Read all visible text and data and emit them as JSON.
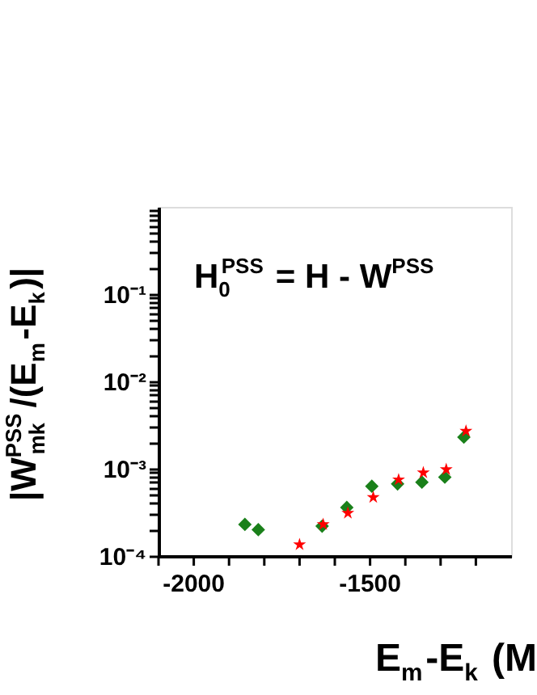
{
  "chart_data": {
    "type": "scatter",
    "xlabel": "E$_{m}$-E$_{k}$ (M",
    "ylabel": "|W$^{PSS}$$_{mk}$/(E$_{m}$-E$_{k}$)|",
    "annotations": [
      "H$_{0}$$^{PSS}$ = H - W$^{PSS}$"
    ],
    "log": "y",
    "legend": false,
    "xlim": [
      -2100,
      -1100
    ],
    "xticks": [
      {
        "value": -2100,
        "label": null
      },
      -2000,
      {
        "value": -1900,
        "label": null
      },
      {
        "value": -1800,
        "label": null
      },
      {
        "value": -1700,
        "label": null
      },
      {
        "value": -1600,
        "label": null
      },
      -1500,
      {
        "value": -1400,
        "label": null
      },
      {
        "value": -1300,
        "label": null
      },
      {
        "value": -1200,
        "label": null
      }
    ],
    "ylim": [
      0.0001,
      1
    ],
    "yticks": [
      {
        "value": 0.0001,
        "label": "10⁻⁴"
      },
      {
        "value": 0.0002,
        "label": null
      },
      {
        "value": 0.0003,
        "label": null
      },
      {
        "value": 0.0004,
        "label": null
      },
      {
        "value": 0.0005,
        "label": null
      },
      {
        "value": 0.0006,
        "label": null
      },
      {
        "value": 0.0007,
        "label": null
      },
      {
        "value": 0.0008,
        "label": null
      },
      {
        "value": 0.0009,
        "label": null
      },
      {
        "value": 0.001,
        "label": "10⁻³"
      },
      {
        "value": 0.002,
        "label": null
      },
      {
        "value": 0.003,
        "label": null
      },
      {
        "value": 0.004,
        "label": null
      },
      {
        "value": 0.005,
        "label": null
      },
      {
        "value": 0.006,
        "label": null
      },
      {
        "value": 0.007,
        "label": null
      },
      {
        "value": 0.008,
        "label": null
      },
      {
        "value": 0.009,
        "label": null
      },
      {
        "value": 0.01,
        "label": "10⁻²"
      },
      {
        "value": 0.02,
        "label": null
      },
      {
        "value": 0.03,
        "label": null
      },
      {
        "value": 0.04,
        "label": null
      },
      {
        "value": 0.05,
        "label": null
      },
      {
        "value": 0.06,
        "label": null
      },
      {
        "value": 0.07,
        "label": null
      },
      {
        "value": 0.08,
        "label": null
      },
      {
        "value": 0.09,
        "label": null
      },
      {
        "value": 0.1,
        "label": "10⁻¹"
      },
      {
        "value": 0.2,
        "label": null
      },
      {
        "value": 0.3,
        "label": null
      },
      {
        "value": 0.4,
        "label": null
      },
      {
        "value": 0.5,
        "label": null
      },
      {
        "value": 0.6,
        "label": null
      },
      {
        "value": 0.7,
        "label": null
      },
      {
        "value": 0.8,
        "label": null
      },
      {
        "value": 0.9,
        "label": null
      }
    ],
    "series": [
      {
        "color": "#1a801a",
        "marker": "diamond",
        "x": [
          -1855,
          -1817,
          -1636,
          -1566,
          -1495,
          -1422,
          -1353,
          -1288,
          -1234
        ],
        "values": [
          0.00023,
          0.0002,
          0.00022,
          0.00036,
          0.00063,
          0.00067,
          0.0007,
          0.0008,
          0.0023
        ]
      },
      {
        "color": "#ff0000",
        "marker": "star",
        "x": [
          -1700,
          -1633,
          -1563,
          -1491,
          -1419,
          -1349,
          -1284,
          -1228
        ],
        "values": [
          0.000135,
          0.00023,
          0.00031,
          0.00047,
          0.00075,
          0.0009,
          0.00098,
          0.0027
        ]
      }
    ]
  }
}
